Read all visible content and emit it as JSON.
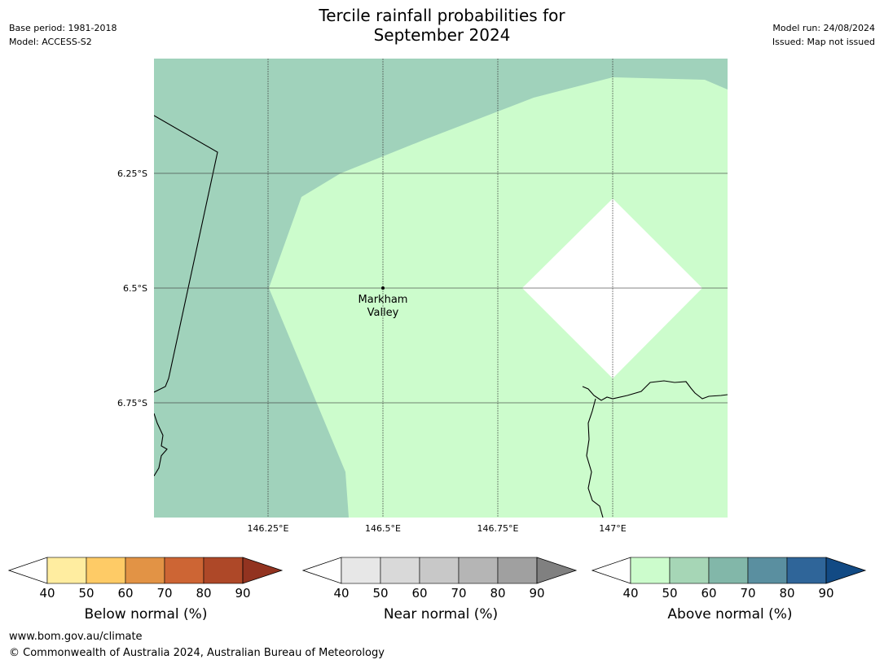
{
  "header": {
    "title_line1": "Tercile rainfall probabilities for",
    "title_line2": "September 2024",
    "base_period": "Base period: 1981-2018",
    "model": "Model: ACCESS-S2",
    "model_run": "Model run: 24/08/2024",
    "issued": "Issued: Map not issued"
  },
  "map": {
    "place_label_line1": "Markham",
    "place_label_line2": "Valley",
    "lat_ticks": [
      "6.25°S",
      "6.5°S",
      "6.75°S"
    ],
    "lon_ticks": [
      "146.25°E",
      "146.5°E",
      "146.75°E",
      "147°E"
    ],
    "colors": {
      "above_50_60": "#a0d2bb",
      "above_40_50": "#ccfccc",
      "no_signal": "#ffffff"
    }
  },
  "legend": {
    "ticks": [
      "40",
      "50",
      "60",
      "70",
      "80",
      "90"
    ],
    "bars": [
      {
        "label": "Below normal (%)",
        "colors": [
          "#ffffff",
          "#ffeda0",
          "#fecb66",
          "#e29345",
          "#cd6534",
          "#ae4828",
          "#923320"
        ]
      },
      {
        "label": "Near normal (%)",
        "colors": [
          "#ffffff",
          "#e7e7e7",
          "#d9d9d9",
          "#c8c8c8",
          "#b5b5b5",
          "#a0a0a0",
          "#808080"
        ]
      },
      {
        "label": "Above normal (%)",
        "colors": [
          "#ffffff",
          "#ccfccc",
          "#a6d6b6",
          "#82b7a9",
          "#5a8fa0",
          "#2f6599",
          "#124a84"
        ]
      }
    ]
  },
  "footer": {
    "url": "www.bom.gov.au/climate",
    "copyright": "© Commonwealth of Australia 2024, Australian Bureau of Meteorology"
  }
}
